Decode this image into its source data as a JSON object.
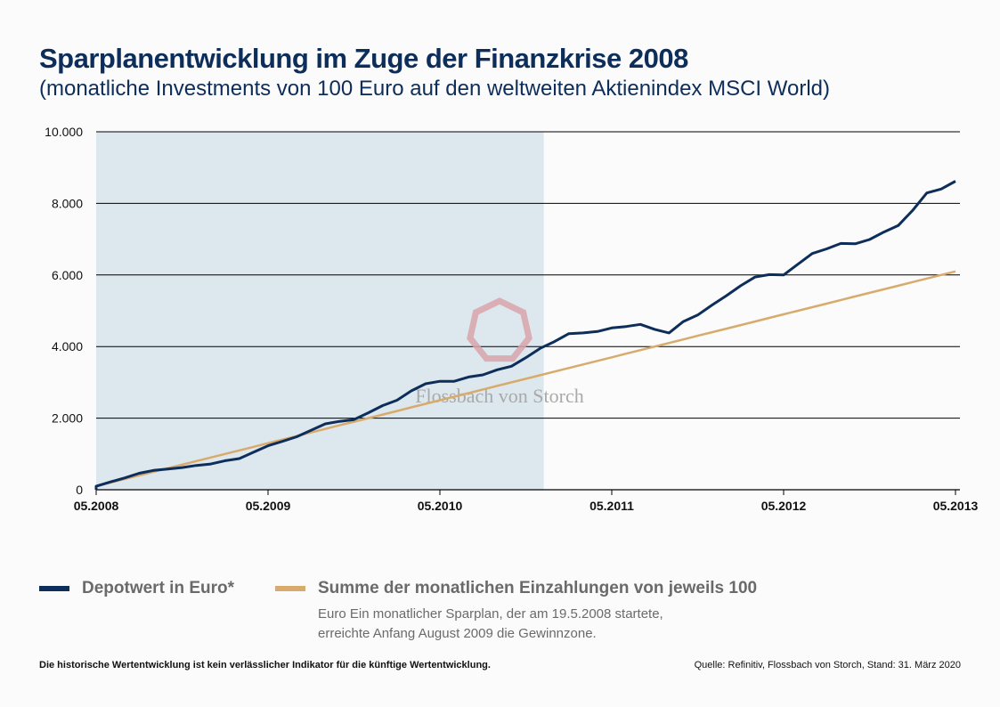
{
  "header": {
    "title": "Sparplanentwicklung im Zuge der Finanzkrise 2008",
    "subtitle": "(monatliche Investments von 100 Euro auf den weltweiten Aktienindex MSCI World)"
  },
  "chart_data": {
    "type": "line",
    "ylim": [
      0,
      10000
    ],
    "yticks": [
      0,
      2000,
      4000,
      6000,
      8000,
      10000
    ],
    "ytick_labels": [
      "0",
      "2.000",
      "4.000",
      "6.000",
      "8.000",
      "10.000"
    ],
    "xtick_labels": [
      "05.2008",
      "05.2009",
      "05.2010",
      "05.2011",
      "05.2012",
      "05.2013"
    ],
    "grid": "horizontal",
    "shaded_region": {
      "from": "05.2008",
      "to": "12.2010",
      "color": "#dde7ee"
    },
    "x": [
      "05.2008",
      "06.2008",
      "07.2008",
      "08.2008",
      "09.2008",
      "10.2008",
      "11.2008",
      "12.2008",
      "01.2009",
      "02.2009",
      "03.2009",
      "04.2009",
      "05.2009",
      "06.2009",
      "07.2009",
      "08.2009",
      "09.2009",
      "10.2009",
      "11.2009",
      "12.2009",
      "01.2010",
      "02.2010",
      "03.2010",
      "04.2010",
      "05.2010",
      "06.2010",
      "07.2010",
      "08.2010",
      "09.2010",
      "10.2010",
      "11.2010",
      "12.2010",
      "01.2011",
      "02.2011",
      "03.2011",
      "04.2011",
      "05.2011",
      "06.2011",
      "07.2011",
      "08.2011",
      "09.2011",
      "10.2011",
      "11.2011",
      "12.2011",
      "01.2012",
      "02.2012",
      "03.2012",
      "04.2012",
      "05.2012",
      "06.2012",
      "07.2012",
      "08.2012",
      "09.2012",
      "10.2012",
      "11.2012",
      "12.2012",
      "01.2013",
      "02.2013",
      "03.2013",
      "04.2013",
      "05.2013"
    ],
    "series": [
      {
        "name": "Depotwert in Euro*",
        "color": "#0d2d5a",
        "values": [
          100,
          220,
          330,
          460,
          540,
          580,
          620,
          680,
          720,
          810,
          870,
          1050,
          1230,
          1350,
          1480,
          1660,
          1840,
          1910,
          1960,
          2150,
          2350,
          2500,
          2760,
          2960,
          3030,
          3030,
          3150,
          3210,
          3350,
          3450,
          3690,
          3950,
          4140,
          4360,
          4380,
          4420,
          4520,
          4560,
          4620,
          4480,
          4380,
          4700,
          4880,
          5160,
          5420,
          5700,
          5940,
          6010,
          6000,
          6300,
          6600,
          6730,
          6880,
          6870,
          6990,
          7200,
          7380,
          7800,
          8290,
          8400,
          8620
        ]
      },
      {
        "name": "Summe der monatlichen Einzahlungen von jeweils 100",
        "color": "#d8ab6c",
        "values": [
          100,
          200,
          300,
          400,
          500,
          600,
          700,
          800,
          900,
          1000,
          1100,
          1200,
          1300,
          1400,
          1500,
          1600,
          1700,
          1800,
          1900,
          2000,
          2100,
          2200,
          2300,
          2400,
          2500,
          2600,
          2700,
          2800,
          2900,
          3000,
          3100,
          3200,
          3300,
          3400,
          3500,
          3600,
          3700,
          3800,
          3900,
          4000,
          4100,
          4200,
          4300,
          4400,
          4500,
          4600,
          4700,
          4800,
          4900,
          5000,
          5100,
          5200,
          5300,
          5400,
          5500,
          5600,
          5700,
          5800,
          5900,
          6000,
          6100
        ]
      }
    ],
    "watermark": "Flossbach von Storch"
  },
  "legend": {
    "depot": "Depotwert in Euro*",
    "summe": "Summe der monatlichen Einzahlungen von jeweils 100",
    "note_line1": "Euro Ein monatlicher Sparplan, der am 19.5.2008 startete,",
    "note_line2": "erreichte  Anfang August 2009 die Gewinnzone."
  },
  "footer": {
    "disclaimer": "Die historische Wertentwicklung ist kein verlässlicher Indikator für die künftige Wertentwicklung.",
    "source": "Quelle: Refinitiv, Flossbach von Storch, Stand: 31. März 2020"
  }
}
